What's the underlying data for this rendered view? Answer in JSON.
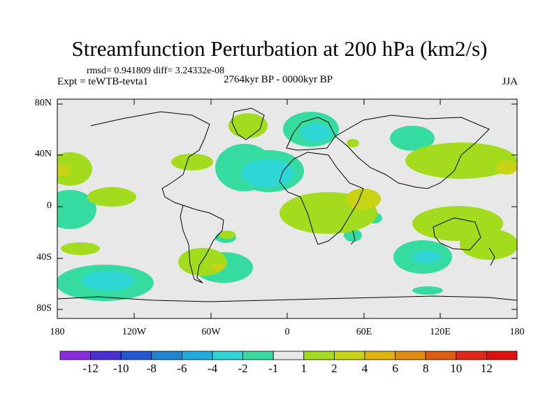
{
  "title": "Streamfunction Perturbation at 200 hPa (km2/s)",
  "stats": "rmsd= 0.941809 diff= 3.24332e-08",
  "experiment": "Expt = teWTB-tevta1",
  "period": "2764kyr BP - 0000kyr BP",
  "season": "JJA",
  "lat_labels": [
    "80N",
    "40N",
    "0",
    "40S",
    "80S"
  ],
  "lon_labels": [
    "180",
    "120W",
    "60W",
    "0",
    "60E",
    "120E",
    "180"
  ],
  "colorbar": {
    "labels": [
      "-12",
      "-10",
      "-8",
      "-6",
      "-4",
      "-2",
      "-1",
      "1",
      "2",
      "4",
      "6",
      "8",
      "10",
      "12"
    ],
    "colors": [
      "#8a2be2",
      "#4b2fd6",
      "#2358d4",
      "#1f86d6",
      "#20aee0",
      "#2fd6d6",
      "#36dba0",
      "#e8e8e8",
      "#a3dc1c",
      "#c8d413",
      "#e0b40c",
      "#e08a10",
      "#e05c10",
      "#e02818",
      "#e01010"
    ]
  },
  "colors": {
    "background": "#e8e8e8",
    "coast": "#000000"
  }
}
